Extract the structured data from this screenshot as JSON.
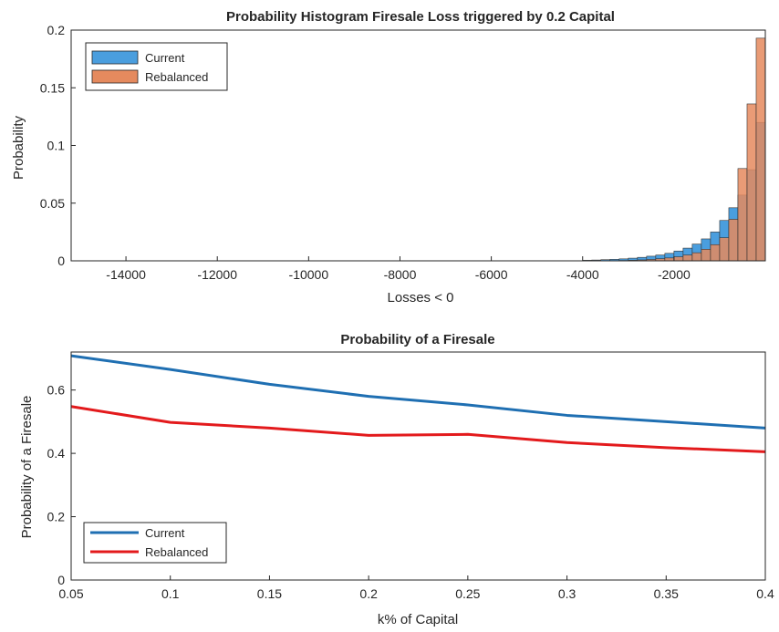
{
  "chart_data": [
    {
      "type": "bar",
      "title": "Probability Histogram Firesale Loss triggered by 0.2 Capital",
      "xlabel": "Losses < 0",
      "ylabel": "Probability",
      "xlim": [
        -15200,
        0
      ],
      "ylim": [
        0,
        0.2
      ],
      "xticks": [
        -14000,
        -12000,
        -10000,
        -8000,
        -6000,
        -4000,
        -2000
      ],
      "xtick_labels": [
        "-14000",
        "-12000",
        "-10000",
        "-8000",
        "-6000",
        "-4000",
        "-2000"
      ],
      "yticks": [
        0,
        0.05,
        0.1,
        0.15,
        0.2
      ],
      "ytick_labels": [
        "0",
        "0.05",
        "0.1",
        "0.15",
        "0.2"
      ],
      "grid": false,
      "legend_position": "top-left",
      "bin_edges": [
        -4000,
        -3800,
        -3600,
        -3400,
        -3200,
        -3000,
        -2800,
        -2600,
        -2400,
        -2200,
        -2000,
        -1800,
        -1600,
        -1400,
        -1200,
        -1000,
        -800,
        -600,
        -400,
        -200,
        0
      ],
      "series": [
        {
          "name": "Current",
          "color": "#4a9ede",
          "values": [
            0.0005,
            0.0007,
            0.001,
            0.0013,
            0.0017,
            0.0023,
            0.003,
            0.004,
            0.005,
            0.0065,
            0.0085,
            0.011,
            0.0145,
            0.019,
            0.025,
            0.035,
            0.046,
            0.057,
            0.079,
            0.12
          ]
        },
        {
          "name": "Rebalanced",
          "color": "#e58a5e",
          "values": [
            0,
            0,
            0,
            0,
            0.0003,
            0.0005,
            0.0008,
            0.0012,
            0.0018,
            0.0025,
            0.0035,
            0.005,
            0.007,
            0.01,
            0.014,
            0.02,
            0.036,
            0.08,
            0.136,
            0.193
          ]
        }
      ]
    },
    {
      "type": "line",
      "title": "Probability of a Firesale",
      "xlabel": "k% of Capital",
      "ylabel": "Probability of a Firesale",
      "xlim": [
        0.05,
        0.4
      ],
      "ylim": [
        0,
        0.72
      ],
      "xticks": [
        0.05,
        0.1,
        0.15,
        0.2,
        0.25,
        0.3,
        0.35,
        0.4
      ],
      "xtick_labels": [
        "0.05",
        "0.1",
        "0.15",
        "0.2",
        "0.25",
        "0.3",
        "0.35",
        "0.4"
      ],
      "yticks": [
        0,
        0.2,
        0.4,
        0.6
      ],
      "ytick_labels": [
        "0",
        "0.2",
        "0.4",
        "0.6"
      ],
      "grid": false,
      "legend_position": "bottom-left",
      "x": [
        0.05,
        0.1,
        0.15,
        0.2,
        0.25,
        0.3,
        0.35,
        0.4
      ],
      "series": [
        {
          "name": "Current",
          "color": "#1f6fb2",
          "values": [
            0.708,
            0.665,
            0.618,
            0.58,
            0.553,
            0.52,
            0.5,
            0.48
          ]
        },
        {
          "name": "Rebalanced",
          "color": "#e31a1c",
          "values": [
            0.548,
            0.498,
            0.48,
            0.457,
            0.46,
            0.434,
            0.418,
            0.405
          ]
        }
      ]
    }
  ]
}
